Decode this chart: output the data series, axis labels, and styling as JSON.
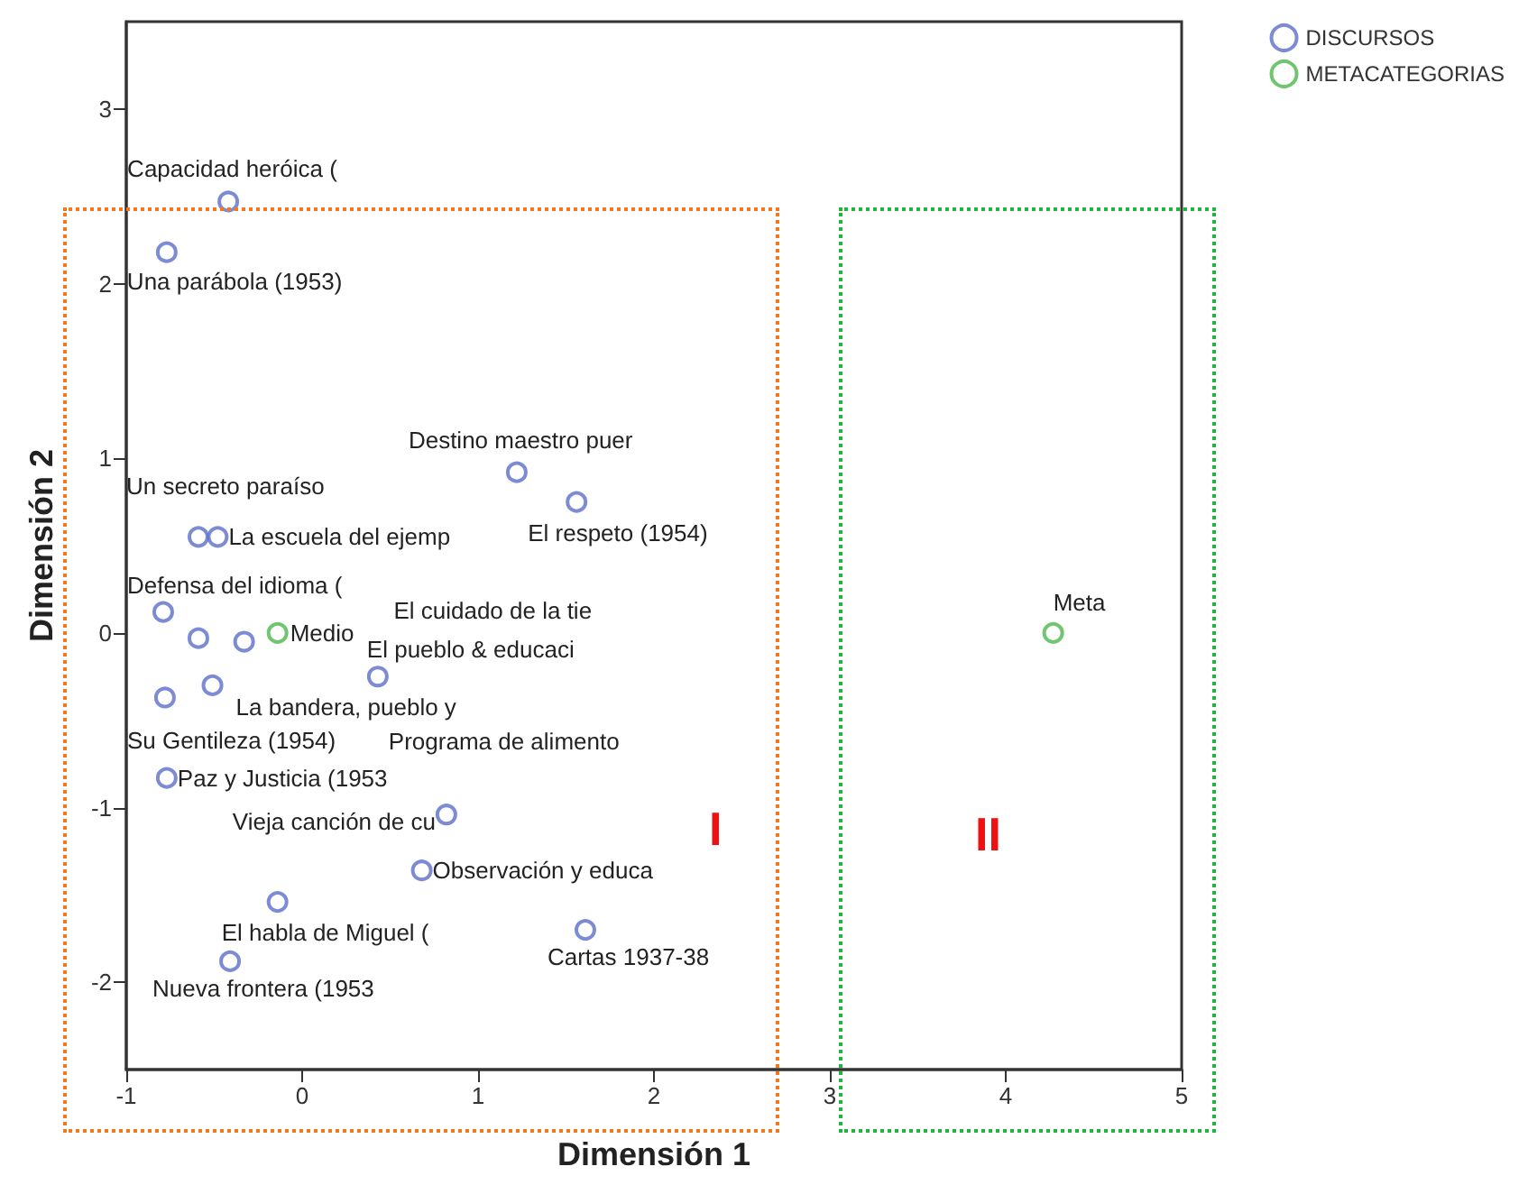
{
  "chart_data": {
    "type": "scatter",
    "xlabel": "Dimensión 1",
    "ylabel": "Dimensión 2",
    "xlim": [
      -1,
      5
    ],
    "ylim": [
      -2.5,
      3.5
    ],
    "xticks": [
      -1,
      0,
      1,
      2,
      3,
      4,
      5
    ],
    "yticks": [
      -2,
      -1,
      0,
      1,
      2,
      3
    ],
    "grid": false,
    "legend": "top right",
    "marker": "circle",
    "series": [
      {
        "name": "DISCURSOS",
        "color": "#5b6ec8",
        "x": [
          -0.42,
          -0.77,
          1.22,
          1.56,
          -0.59,
          -0.48,
          -0.79,
          -0.59,
          -0.33,
          -0.51,
          -0.78,
          0.43,
          -0.77,
          0.82,
          0.68,
          -0.14,
          1.61,
          -0.41
        ],
        "values": [
          2.47,
          2.18,
          0.92,
          0.75,
          0.55,
          0.55,
          0.12,
          -0.03,
          -0.05,
          -0.3,
          -0.37,
          -0.25,
          -0.83,
          -1.04,
          -1.36,
          -1.54,
          -1.7,
          -1.88
        ]
      },
      {
        "name": "METACATEGORIAS",
        "color": "#4cb84c",
        "x": [
          -0.14,
          4.27
        ],
        "values": [
          0.0,
          0.0
        ]
      }
    ],
    "annotations": [
      {
        "text": "Capacidad heróica (",
        "x": -0.42,
        "y": 2.47
      },
      {
        "text": "Una parábola (1953)",
        "x": -0.77,
        "y": 2.18
      },
      {
        "text": "Destino maestro puer",
        "x": 1.22,
        "y": 0.92
      },
      {
        "text": "El respeto (1954)",
        "x": 1.56,
        "y": 0.75
      },
      {
        "text": "Un secreto paraíso",
        "x": -0.59,
        "y": 0.55
      },
      {
        "text": "La escuela del ejemp",
        "x": -0.48,
        "y": 0.55
      },
      {
        "text": "Defensa del idioma (",
        "x": -0.79,
        "y": 0.12
      },
      "El cuidado de la tie",
      {
        "text": "El pueblo & educaci",
        "x": 0.43,
        "y": -0.25
      },
      {
        "text": "La bandera, pueblo y",
        "x": -0.51,
        "y": -0.3
      },
      {
        "text": "Su Gentileza (1954)",
        "x": -0.78,
        "y": -0.37
      },
      {
        "text": "Programa de alimento",
        "x": 0.43,
        "y": -0.25
      },
      {
        "text": "Paz y Justicia (1953",
        "x": -0.77,
        "y": -0.83
      },
      {
        "text": "Vieja canción de cu",
        "x": 0.82,
        "y": -1.04
      },
      {
        "text": "Observación y educa",
        "x": 0.68,
        "y": -1.36
      },
      {
        "text": "El habla de Miguel (",
        "x": -0.14,
        "y": -1.54
      },
      {
        "text": "Cartas 1937-38",
        "x": 1.61,
        "y": -1.7
      },
      {
        "text": "Nueva frontera (1953",
        "x": -0.41,
        "y": -1.88
      },
      {
        "text": "Medio",
        "x": -0.14,
        "y": 0.0
      },
      {
        "text": "Meta",
        "x": 4.27,
        "y": 0.0
      },
      "I",
      "II"
    ]
  }
}
